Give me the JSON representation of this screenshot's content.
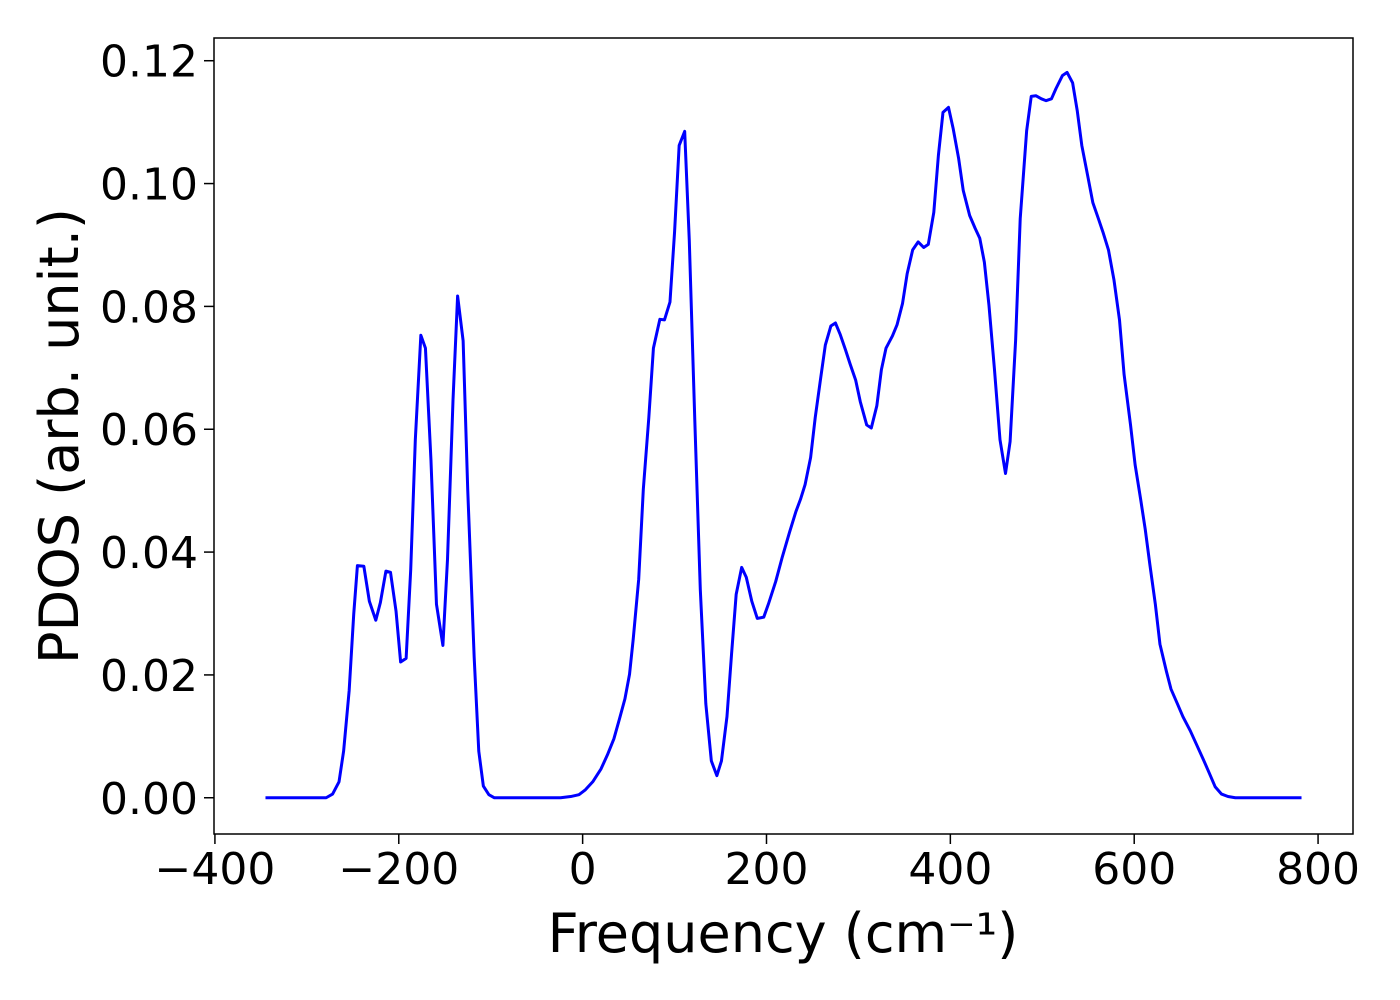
{
  "chart_data": {
    "type": "line",
    "xlabel": "Frequency (cm⁻¹)",
    "ylabel": "PDOS (arb. unit.)",
    "xlim": [
      -401,
      838
    ],
    "ylim": [
      -0.0059,
      0.1237
    ],
    "xticks": [
      {
        "value": -400,
        "label": "−400"
      },
      {
        "value": -200,
        "label": "−200"
      },
      0,
      200,
      400,
      600,
      800
    ],
    "yticks": [
      {
        "value": 0,
        "label": "0.00"
      },
      {
        "value": 0.02,
        "label": "0.02"
      },
      {
        "value": 0.04,
        "label": "0.04"
      },
      {
        "value": 0.06,
        "label": "0.06"
      },
      {
        "value": 0.08,
        "label": "0.08"
      },
      {
        "value": 0.1,
        "label": "0.10"
      },
      {
        "value": 0.12,
        "label": "0.12"
      }
    ],
    "grid": false,
    "x": [
      -345,
      -279,
      -272,
      -265,
      -260,
      -254,
      -249,
      -245,
      -238,
      -232,
      -225,
      -220,
      -214,
      -209,
      -203,
      -198,
      -192,
      -187,
      -182,
      -176,
      -171,
      -165,
      -159,
      -152,
      -147,
      -141,
      -136,
      -130,
      -125,
      -118,
      -113,
      -108,
      -102,
      -96,
      -24,
      -13,
      -4,
      3,
      11,
      20,
      27,
      34,
      40,
      46,
      51,
      55,
      61,
      66,
      72,
      77,
      84,
      89,
      95,
      100,
      105,
      111,
      116,
      122,
      128,
      134,
      140,
      146,
      151,
      157,
      162,
      167,
      173,
      178,
      184,
      190,
      197,
      202,
      210,
      217,
      225,
      232,
      237,
      242,
      248,
      253,
      259,
      264,
      270,
      275,
      280,
      286,
      291,
      297,
      302,
      309,
      314,
      320,
      325,
      330,
      337,
      342,
      348,
      353,
      359,
      365,
      371,
      376,
      382,
      387,
      392,
      398,
      403,
      409,
      414,
      421,
      427,
      432,
      437,
      442,
      448,
      454,
      460,
      465,
      471,
      476,
      483,
      488,
      493,
      499,
      504,
      510,
      515,
      522,
      527,
      533,
      538,
      543,
      550,
      555,
      561,
      566,
      572,
      578,
      584,
      589,
      596,
      601,
      607,
      612,
      617,
      623,
      628,
      635,
      640,
      647,
      653,
      661,
      668,
      675,
      682,
      688,
      695,
      702,
      710,
      782
    ],
    "series": [
      {
        "name": "PDOS",
        "color": "#0000ff",
        "values": [
          0,
          0,
          0.0006,
          0.0026,
          0.0076,
          0.0174,
          0.0299,
          0.0378,
          0.0377,
          0.032,
          0.0289,
          0.0318,
          0.0369,
          0.0367,
          0.0304,
          0.0221,
          0.0227,
          0.0372,
          0.0583,
          0.0753,
          0.0732,
          0.055,
          0.0315,
          0.0248,
          0.0388,
          0.0648,
          0.0817,
          0.0744,
          0.0502,
          0.0229,
          0.0076,
          0.0019,
          0.0005,
          0,
          0,
          0.0002,
          0.0005,
          0.0013,
          0.0026,
          0.0047,
          0.007,
          0.0096,
          0.0128,
          0.0161,
          0.0201,
          0.0258,
          0.0356,
          0.0502,
          0.0619,
          0.0732,
          0.0779,
          0.0778,
          0.0807,
          0.0921,
          0.1062,
          0.1085,
          0.0908,
          0.0615,
          0.0339,
          0.0153,
          0.006,
          0.0036,
          0.006,
          0.0132,
          0.0234,
          0.0331,
          0.0375,
          0.0359,
          0.032,
          0.0292,
          0.0294,
          0.0315,
          0.0352,
          0.0391,
          0.0432,
          0.0466,
          0.0486,
          0.051,
          0.0554,
          0.0619,
          0.0684,
          0.0737,
          0.0768,
          0.0773,
          0.0755,
          0.0729,
          0.0706,
          0.068,
          0.0645,
          0.0607,
          0.0602,
          0.0638,
          0.0697,
          0.0732,
          0.0752,
          0.077,
          0.0805,
          0.0853,
          0.0892,
          0.0905,
          0.0896,
          0.0901,
          0.0953,
          0.1046,
          0.1116,
          0.1124,
          0.109,
          0.1041,
          0.0989,
          0.0948,
          0.0927,
          0.0911,
          0.0872,
          0.0802,
          0.0697,
          0.0583,
          0.0528,
          0.058,
          0.0745,
          0.0943,
          0.1086,
          0.1142,
          0.1143,
          0.1138,
          0.1135,
          0.1138,
          0.1155,
          0.1176,
          0.1181,
          0.1164,
          0.1119,
          0.1062,
          0.1008,
          0.0969,
          0.0943,
          0.0921,
          0.0892,
          0.0843,
          0.0778,
          0.0689,
          0.0607,
          0.0542,
          0.0486,
          0.0437,
          0.038,
          0.0315,
          0.025,
          0.0206,
          0.0177,
          0.0153,
          0.0132,
          0.0109,
          0.0086,
          0.0063,
          0.0039,
          0.0018,
          0.0006,
          0.0002,
          0,
          0
        ]
      }
    ]
  }
}
